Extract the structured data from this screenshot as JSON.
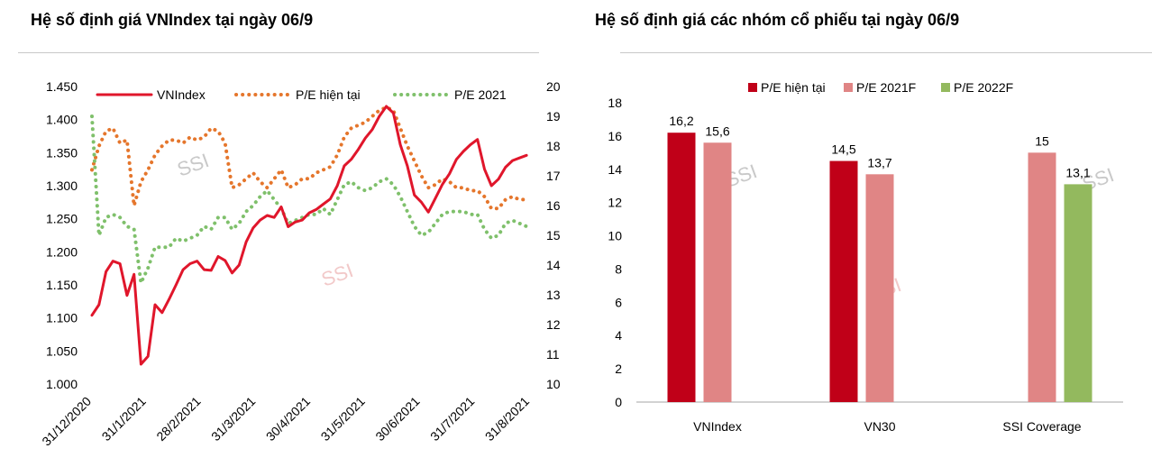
{
  "titles": {
    "left": "Hệ số định giá VNIndex tại ngày 06/9",
    "right": "Hệ số định giá các nhóm cổ phiếu tại ngày 06/9"
  },
  "watermark": "SSI",
  "colors": {
    "vnindex": "#e0162b",
    "pe_current": "#e5762c",
    "pe_2021_dots": "#7fc06b",
    "bar_pe_current": "#c00018",
    "bar_pe_2021f": "#e08585",
    "bar_pe_2022f": "#93b95e"
  },
  "chart_data": [
    {
      "type": "line",
      "title": "Hệ số định giá VNIndex tại ngày 06/9",
      "x_tick_labels": [
        "31/12/2020",
        "31/1/2021",
        "28/2/2021",
        "31/3/2021",
        "30/4/2021",
        "31/5/2021",
        "30/6/2021",
        "31/7/2021",
        "31/8/2021"
      ],
      "y_left_ticks": [
        "1.450",
        "1.400",
        "1.350",
        "1.300",
        "1.250",
        "1.200",
        "1.150",
        "1.100",
        "1.050",
        "1.000"
      ],
      "y_left_range": [
        1000,
        1450
      ],
      "y_right_ticks": [
        "20",
        "19",
        "18",
        "17",
        "16",
        "15",
        "14",
        "13",
        "12",
        "11",
        "10"
      ],
      "y_right_range": [
        10,
        20
      ],
      "legend": [
        "VNIndex",
        "P/E hiện tại",
        "P/E 2021"
      ],
      "legend_position": "top",
      "grid": false,
      "x_range_days": [
        0,
        250
      ],
      "series": [
        {
          "name": "VNIndex",
          "axis": "left",
          "style": "solid",
          "x": [
            0,
            4,
            8,
            12,
            16,
            20,
            24,
            28,
            32,
            36,
            40,
            44,
            48,
            52,
            56,
            60,
            64,
            68,
            72,
            76,
            80,
            84,
            88,
            92,
            96,
            100,
            104,
            108,
            112,
            116,
            120,
            124,
            128,
            132,
            136,
            140,
            144,
            148,
            152,
            156,
            160,
            164,
            168,
            172,
            176,
            180,
            184,
            188,
            192,
            196,
            200,
            204,
            208,
            212,
            216,
            220,
            224,
            228,
            232,
            236,
            240,
            244,
            248
          ],
          "values": [
            1104,
            1120,
            1170,
            1186,
            1182,
            1134,
            1166,
            1030,
            1042,
            1120,
            1108,
            1128,
            1150,
            1173,
            1182,
            1186,
            1173,
            1172,
            1193,
            1187,
            1168,
            1180,
            1215,
            1236,
            1248,
            1255,
            1252,
            1268,
            1238,
            1245,
            1248,
            1259,
            1264,
            1272,
            1280,
            1300,
            1330,
            1340,
            1355,
            1372,
            1385,
            1405,
            1420,
            1410,
            1362,
            1330,
            1286,
            1275,
            1260,
            1281,
            1302,
            1318,
            1340,
            1352,
            1362,
            1370,
            1325,
            1300,
            1310,
            1328,
            1338,
            1342,
            1346
          ]
        },
        {
          "name": "P/E hiện tại",
          "axis": "right",
          "style": "dotted",
          "x": [
            0,
            4,
            8,
            12,
            16,
            20,
            24,
            28,
            32,
            36,
            40,
            44,
            48,
            52,
            56,
            60,
            64,
            68,
            72,
            76,
            80,
            84,
            88,
            92,
            96,
            100,
            104,
            108,
            112,
            116,
            120,
            124,
            128,
            132,
            136,
            140,
            144,
            148,
            152,
            156,
            160,
            164,
            168,
            172,
            176,
            180,
            184,
            188,
            192,
            196,
            200,
            204,
            208,
            212,
            216,
            220,
            224,
            228,
            232,
            236,
            240,
            244,
            248
          ],
          "values": [
            17.2,
            18.0,
            18.5,
            18.6,
            18.1,
            18.2,
            16.0,
            16.8,
            17.2,
            17.7,
            18.0,
            18.2,
            18.2,
            18.1,
            18.3,
            18.2,
            18.3,
            18.6,
            18.5,
            18.1,
            16.6,
            16.7,
            16.9,
            17.1,
            16.8,
            16.6,
            16.9,
            17.2,
            16.6,
            16.7,
            16.9,
            16.9,
            17.1,
            17.2,
            17.3,
            17.7,
            18.3,
            18.6,
            18.7,
            18.8,
            19.0,
            19.2,
            19.3,
            19.2,
            18.6,
            18.0,
            17.5,
            17.0,
            16.6,
            16.7,
            16.9,
            16.8,
            16.6,
            16.6,
            16.5,
            16.5,
            16.3,
            15.9,
            15.9,
            16.2,
            16.3,
            16.2,
            16.2
          ]
        },
        {
          "name": "P/E 2021",
          "axis": "right",
          "style": "dotted",
          "x": [
            0,
            4,
            8,
            12,
            16,
            20,
            24,
            28,
            32,
            36,
            40,
            44,
            48,
            52,
            56,
            60,
            64,
            68,
            72,
            76,
            80,
            84,
            88,
            92,
            96,
            100,
            104,
            108,
            112,
            116,
            120,
            124,
            128,
            132,
            136,
            140,
            144,
            148,
            152,
            156,
            160,
            164,
            168,
            172,
            176,
            180,
            184,
            188,
            192,
            196,
            200,
            204,
            208,
            212,
            216,
            220,
            224,
            228,
            232,
            236,
            240,
            244,
            248
          ],
          "values": [
            19.0,
            15.0,
            15.6,
            15.7,
            15.6,
            15.3,
            15.2,
            13.4,
            13.9,
            14.6,
            14.6,
            14.6,
            14.9,
            14.8,
            14.9,
            15.0,
            15.3,
            15.2,
            15.6,
            15.6,
            15.2,
            15.4,
            15.8,
            16.0,
            16.3,
            16.5,
            16.2,
            15.9,
            15.4,
            15.5,
            15.6,
            15.7,
            15.7,
            15.9,
            15.7,
            16.2,
            16.7,
            16.8,
            16.6,
            16.5,
            16.6,
            16.8,
            16.9,
            16.7,
            16.3,
            15.8,
            15.3,
            15.0,
            15.1,
            15.4,
            15.7,
            15.8,
            15.8,
            15.8,
            15.7,
            15.7,
            15.2,
            14.9,
            15.0,
            15.4,
            15.5,
            15.4,
            15.3
          ]
        }
      ]
    },
    {
      "type": "bar",
      "title": "Hệ số định giá các nhóm cổ phiếu tại ngày 06/9",
      "categories": [
        "VNIndex",
        "VN30",
        "SSI Coverage"
      ],
      "series": [
        {
          "name": "P/E hiện tại",
          "values": [
            16.2,
            14.5,
            null
          ],
          "labels": [
            "16,2",
            "14,5",
            ""
          ]
        },
        {
          "name": "P/E 2021F",
          "values": [
            15.6,
            13.7,
            15
          ],
          "labels": [
            "15,6",
            "13,7",
            "15"
          ]
        },
        {
          "name": "P/E 2022F",
          "values": [
            null,
            null,
            13.1
          ],
          "labels": [
            "",
            "",
            "13,1"
          ]
        }
      ],
      "ylim": [
        0,
        18
      ],
      "y_ticks": [
        "0",
        "2",
        "4",
        "6",
        "8",
        "10",
        "12",
        "14",
        "16",
        "18"
      ],
      "legend_position": "top",
      "grid": false
    }
  ]
}
